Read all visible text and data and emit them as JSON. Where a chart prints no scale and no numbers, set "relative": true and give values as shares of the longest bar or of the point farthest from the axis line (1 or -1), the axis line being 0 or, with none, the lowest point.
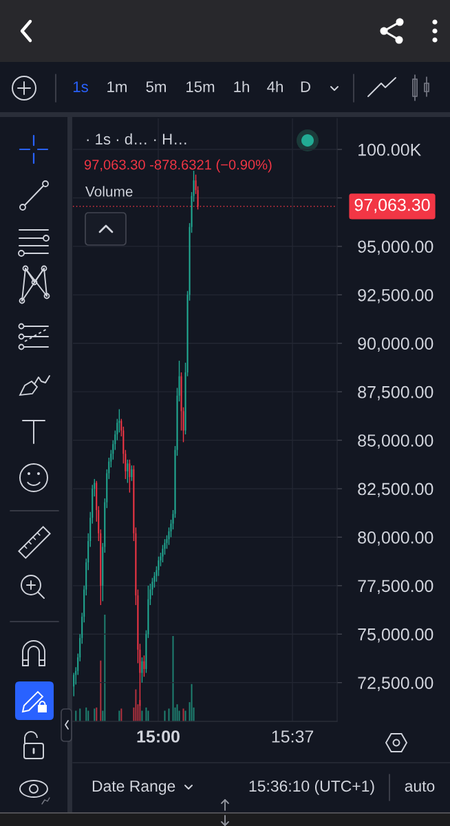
{
  "chart_data": [
    {
      "type": "candlestick",
      "title": "· 1s · d… · H…",
      "subtitle": "97,063.30 -878.6321 (−0.90%)",
      "x": [
        14.612,
        14.6215,
        14.631,
        14.6405,
        14.65,
        14.6595,
        14.669,
        14.6785,
        14.688,
        14.6975,
        14.707,
        14.7165,
        14.726,
        14.7355,
        14.745,
        14.7545,
        14.764,
        14.7735,
        14.783,
        14.7925,
        14.802,
        14.8115,
        14.821,
        14.8305,
        14.84,
        14.8495,
        14.859,
        14.8685,
        14.878,
        14.8875,
        14.897,
        14.9065,
        14.916,
        14.9255,
        14.935,
        14.9445,
        14.954,
        14.9635,
        14.973,
        14.9825,
        14.992,
        15.0015,
        15.011,
        15.0205,
        15.03,
        15.0395,
        15.049,
        15.0585,
        15.068,
        15.0775,
        15.087,
        15.0965,
        15.106,
        15.1155,
        15.125,
        15.1345,
        15.144,
        15.1535,
        15.163,
        15.1725,
        15.182
      ],
      "ohlc": [
        [
          72300,
          73000,
          71800,
          72900
        ],
        [
          72900,
          73300,
          72400,
          73100
        ],
        [
          73100,
          74000,
          72900,
          73800
        ],
        [
          73800,
          75000,
          73600,
          74800
        ],
        [
          74800,
          76100,
          74500,
          75900
        ],
        [
          75900,
          77500,
          75600,
          77300
        ],
        [
          77300,
          78900,
          77000,
          78700
        ],
        [
          78700,
          80200,
          78300,
          79800
        ],
        [
          79800,
          81300,
          79500,
          81000
        ],
        [
          81000,
          82700,
          80700,
          82500
        ],
        [
          82500,
          83000,
          82100,
          82800
        ],
        [
          82800,
          82900,
          80800,
          81400
        ],
        [
          81400,
          81600,
          79800,
          80200
        ],
        [
          80200,
          80400,
          76500,
          77500
        ],
        [
          77500,
          79700,
          76700,
          79500
        ],
        [
          79500,
          82000,
          79200,
          81800
        ],
        [
          81800,
          83500,
          81500,
          83300
        ],
        [
          83300,
          84100,
          83000,
          83900
        ],
        [
          83900,
          84500,
          83600,
          84300
        ],
        [
          84300,
          85000,
          84000,
          84800
        ],
        [
          84800,
          85500,
          84500,
          85300
        ],
        [
          85300,
          86100,
          85000,
          85900
        ],
        [
          85900,
          86600,
          85400,
          86000
        ],
        [
          86000,
          86100,
          85200,
          85500
        ],
        [
          85500,
          85700,
          83800,
          84300
        ],
        [
          84300,
          84500,
          83000,
          83400
        ],
        [
          83400,
          84000,
          82800,
          83800
        ],
        [
          83800,
          84000,
          82300,
          83100
        ],
        [
          83100,
          83700,
          82900,
          83500
        ],
        [
          83500,
          83700,
          79800,
          80200
        ],
        [
          80200,
          80500,
          76500,
          77000
        ],
        [
          77000,
          77300,
          73500,
          74200
        ],
        [
          74200,
          74500,
          71300,
          73000
        ],
        [
          73000,
          73800,
          72500,
          73600
        ],
        [
          73600,
          73900,
          72800,
          73200
        ],
        [
          73200,
          75200,
          73000,
          75000
        ],
        [
          75000,
          77500,
          74800,
          76800
        ],
        [
          76800,
          77600,
          76500,
          77300
        ],
        [
          77300,
          77900,
          77000,
          77700
        ],
        [
          77700,
          78200,
          77400,
          78000
        ],
        [
          78000,
          78500,
          77700,
          78300
        ],
        [
          78300,
          79000,
          78000,
          78800
        ],
        [
          78800,
          79200,
          78500,
          79000
        ],
        [
          79000,
          79600,
          78700,
          79400
        ],
        [
          79400,
          79900,
          79100,
          79700
        ],
        [
          79700,
          80100,
          79400,
          79900
        ],
        [
          79900,
          80500,
          79600,
          80300
        ],
        [
          80300,
          80900,
          80000,
          80700
        ],
        [
          80700,
          81400,
          80400,
          81200
        ],
        [
          81200,
          84700,
          81000,
          84500
        ],
        [
          84500,
          87700,
          84200,
          87300
        ],
        [
          87300,
          89100,
          87000,
          88300
        ],
        [
          88300,
          88500,
          85500,
          86500
        ],
        [
          86500,
          86700,
          84900,
          85500
        ],
        [
          85500,
          89000,
          85300,
          88500
        ],
        [
          88500,
          92700,
          88300,
          92500
        ],
        [
          92500,
          96200,
          92200,
          96000
        ],
        [
          96000,
          97800,
          95700,
          97600
        ],
        [
          97600,
          98900,
          97300,
          98400
        ],
        [
          98400,
          98700,
          97700,
          97900
        ],
        [
          97900,
          98100,
          96900,
          97063.3
        ]
      ],
      "colors": [
        "#22ab94",
        "#22ab94",
        "#22ab94",
        "#22ab94",
        "#22ab94",
        "#22ab94",
        "#22ab94",
        "#22ab94",
        "#22ab94",
        "#22ab94",
        "#22ab94",
        "#f23645",
        "#f23645",
        "#f23645",
        "#22ab94",
        "#22ab94",
        "#22ab94",
        "#22ab94",
        "#22ab94",
        "#22ab94",
        "#22ab94",
        "#22ab94",
        "#22ab94",
        "#f23645",
        "#f23645",
        "#f23645",
        "#22ab94",
        "#f23645",
        "#22ab94",
        "#f23645",
        "#f23645",
        "#f23645",
        "#f23645",
        "#22ab94",
        "#f23645",
        "#22ab94",
        "#22ab94",
        "#22ab94",
        "#22ab94",
        "#22ab94",
        "#22ab94",
        "#22ab94",
        "#22ab94",
        "#22ab94",
        "#22ab94",
        "#22ab94",
        "#22ab94",
        "#22ab94",
        "#22ab94",
        "#22ab94",
        "#22ab94",
        "#22ab94",
        "#f23645",
        "#f23645",
        "#22ab94",
        "#22ab94",
        "#22ab94",
        "#22ab94",
        "#22ab94",
        "#f23645",
        "#f23645"
      ],
      "xlim": [
        14.608,
        15.822
      ],
      "xticks": [
        {
          "value": 15,
          "label": "15:00"
        },
        {
          "value": 15.6167,
          "label": "15:37"
        }
      ],
      "ylim": [
        70500,
        101600
      ],
      "yticks": [
        {
          "value": 72500,
          "label": "72,500.00"
        },
        {
          "value": 75000,
          "label": "75,000.00"
        },
        {
          "value": 77500,
          "label": "77,500.00"
        },
        {
          "value": 80000,
          "label": "80,000.00"
        },
        {
          "value": 82500,
          "label": "82,500.00"
        },
        {
          "value": 85000,
          "label": "85,000.00"
        },
        {
          "value": 87500,
          "label": "87,500.00"
        },
        {
          "value": 90000,
          "label": "90,000.00"
        },
        {
          "value": 92500,
          "label": "92,500.00"
        },
        {
          "value": 95000,
          "label": "95,000.00"
        },
        {
          "value": 97500,
          "label": null
        },
        {
          "value": 100000,
          "label": "100.00K"
        }
      ],
      "grid": true,
      "ref_lines": [
        {
          "axis": "y",
          "value": 97063.3,
          "label": "97,063.30",
          "color": "#f23645",
          "line_style": "dotted"
        }
      ],
      "annotations": [
        "1s",
        "1m",
        "5m",
        "15m",
        "1h",
        "4h",
        "D",
        "Date Range",
        "15:36:10 (UTC+1)",
        "auto"
      ]
    },
    {
      "type": "bar",
      "title": "Volume",
      "relative": true,
      "x": [
        14.6215,
        14.6405,
        14.669,
        14.6785,
        14.707,
        14.7165,
        14.7355,
        14.745,
        14.7545,
        14.821,
        14.8305,
        14.8875,
        14.897,
        14.9065,
        14.916,
        14.9255,
        14.9445,
        14.954,
        15.03,
        15.049,
        15.068,
        15.0775,
        15.087,
        15.0965,
        15.1155,
        15.125,
        15.144,
        15.1535,
        15.163
      ],
      "values": [
        0.1,
        0.12,
        0.13,
        0.1,
        0.12,
        0.13,
        0.57,
        0.1,
        1.0,
        0.1,
        0.12,
        0.13,
        0.3,
        0.16,
        0.2,
        0.1,
        0.13,
        0.1,
        0.1,
        0.12,
        0.8,
        0.13,
        0.16,
        0.1,
        0.12,
        0.1,
        0.18,
        0.35,
        0.13
      ],
      "colors": [
        "#1f8272",
        "#1f8272",
        "#1f8272",
        "#1f8272",
        "#1f8272",
        "#b3323f",
        "#b3323f",
        "#1f8272",
        "#1f8272",
        "#1f8272",
        "#b3323f",
        "#b3323f",
        "#b3323f",
        "#b3323f",
        "#b3323f",
        "#1f8272",
        "#1f8272",
        "#1f8272",
        "#1f8272",
        "#1f8272",
        "#1f8272",
        "#1f8272",
        "#1f8272",
        "#1f8272",
        "#b3323f",
        "#1f8272",
        "#1f8272",
        "#1f8272",
        "#1f8272"
      ],
      "xlim": [
        14.608,
        15.822
      ]
    }
  ]
}
